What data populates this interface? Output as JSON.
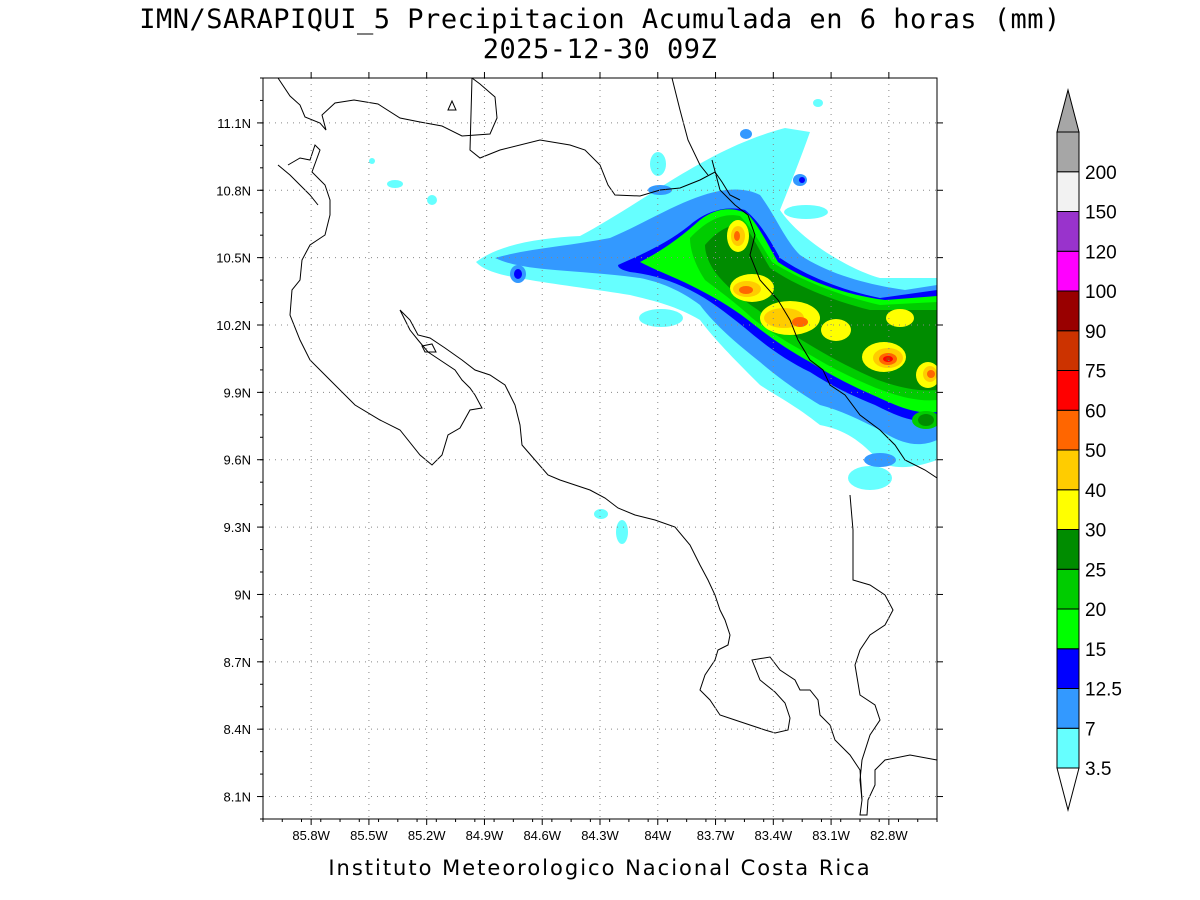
{
  "title": {
    "line1": "IMN/SARAPIQUI_5 Precipitacion Acumulada en 6 horas (mm)",
    "line2": "2025-12-30 09Z"
  },
  "footer": "Instituto Meteorologico Nacional Costa Rica",
  "map": {
    "lon_range": [
      -86.05,
      -82.55
    ],
    "lat_range": [
      8.0,
      11.3
    ],
    "lat_ticks": [
      {
        "value": 11.1,
        "label": "11.1N"
      },
      {
        "value": 10.8,
        "label": "10.8N"
      },
      {
        "value": 10.5,
        "label": "10.5N"
      },
      {
        "value": 10.2,
        "label": "10.2N"
      },
      {
        "value": 9.9,
        "label": "9.9N"
      },
      {
        "value": 9.6,
        "label": "9.6N"
      },
      {
        "value": 9.3,
        "label": "9.3N"
      },
      {
        "value": 9.0,
        "label": "9N"
      },
      {
        "value": 8.7,
        "label": "8.7N"
      },
      {
        "value": 8.4,
        "label": "8.4N"
      },
      {
        "value": 8.1,
        "label": "8.1N"
      }
    ],
    "lon_ticks": [
      {
        "value": -85.8,
        "label": "85.8W"
      },
      {
        "value": -85.5,
        "label": "85.5W"
      },
      {
        "value": -85.2,
        "label": "85.2W"
      },
      {
        "value": -84.9,
        "label": "84.9W"
      },
      {
        "value": -84.6,
        "label": "84.6W"
      },
      {
        "value": -84.3,
        "label": "84.3W"
      },
      {
        "value": -84.0,
        "label": "84W"
      },
      {
        "value": -83.7,
        "label": "83.7W"
      },
      {
        "value": -83.4,
        "label": "83.4W"
      },
      {
        "value": -83.1,
        "label": "83.1W"
      },
      {
        "value": -82.8,
        "label": "82.8W"
      }
    ],
    "grid": "dotted"
  },
  "colorbar": {
    "unit": "mm",
    "bins": [
      {
        "label": "3.5",
        "color": "#66ffff"
      },
      {
        "label": "7",
        "color": "#3399ff"
      },
      {
        "label": "12.5",
        "color": "#0000ff"
      },
      {
        "label": "15",
        "color": "#00ff00"
      },
      {
        "label": "20",
        "color": "#00cc00"
      },
      {
        "label": "25",
        "color": "#008c00"
      },
      {
        "label": "30",
        "color": "#ffff00"
      },
      {
        "label": "40",
        "color": "#ffcc00"
      },
      {
        "label": "50",
        "color": "#ff6600"
      },
      {
        "label": "60",
        "color": "#ff0000"
      },
      {
        "label": "75",
        "color": "#cc3300"
      },
      {
        "label": "90",
        "color": "#990000"
      },
      {
        "label": "100",
        "color": "#ff00ff"
      },
      {
        "label": "120",
        "color": "#9933cc"
      },
      {
        "label": "150",
        "color": "#f2f2f2"
      },
      {
        "label": "200",
        "color": "#a6a6a6"
      }
    ],
    "min_arrow_color": "#ffffff",
    "max_arrow_color": "#a6a6a6"
  }
}
